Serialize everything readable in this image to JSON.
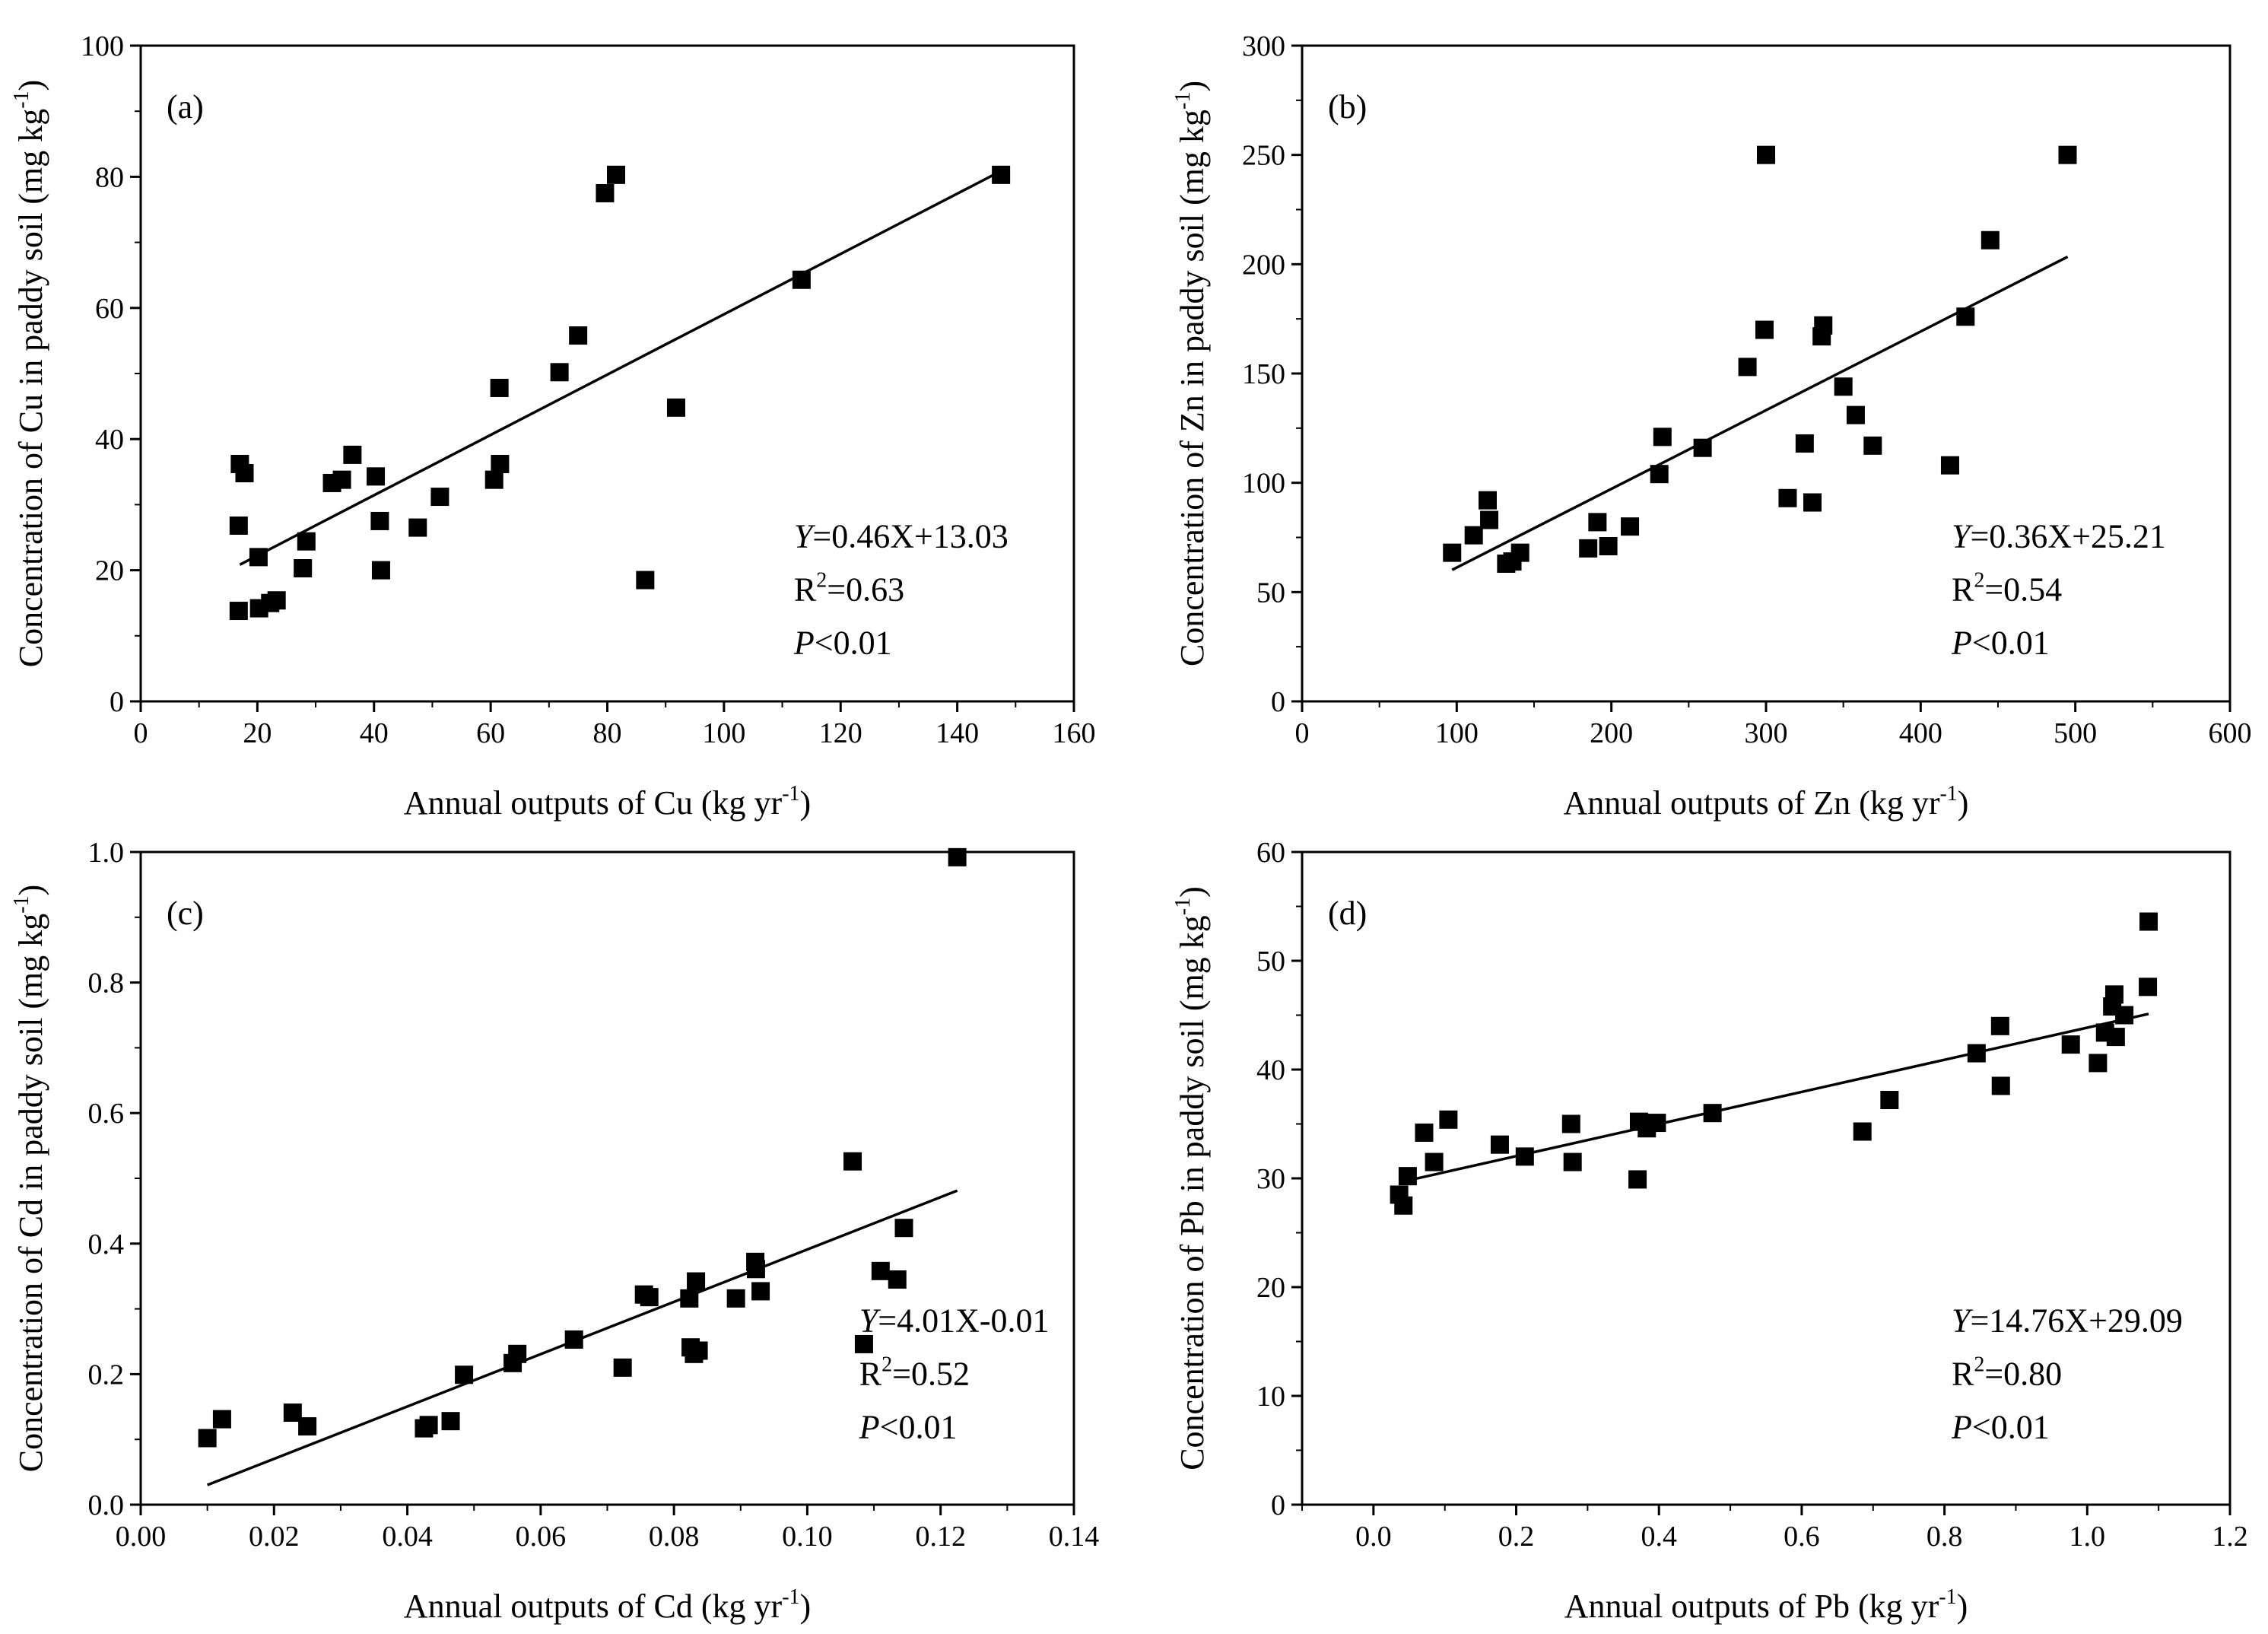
{
  "chart_data": [
    {
      "type": "scatter",
      "panel_label": "(a)",
      "element": "Cu",
      "xlabel": {
        "main": "Annual outputs of Cu (kg yr",
        "sup": "-1",
        "close": ")"
      },
      "ylabel": {
        "main": "Concentration of Cu in paddy soil (mg kg",
        "sup": "-1",
        "close": ")"
      },
      "xlim": [
        0,
        160
      ],
      "ylim": [
        0,
        100
      ],
      "xticks": [
        0,
        20,
        40,
        60,
        80,
        100,
        120,
        140,
        160
      ],
      "xtick_labels": [
        "0",
        "20",
        "40",
        "60",
        "80",
        "100",
        "120",
        "140",
        "160"
      ],
      "yticks": [
        0,
        20,
        40,
        60,
        80,
        100
      ],
      "ytick_labels": [
        "0",
        "20",
        "40",
        "60",
        "80",
        "100"
      ],
      "points": [
        [
          17,
          36.2
        ],
        [
          17.8,
          34.8
        ],
        [
          16.8,
          26.8
        ],
        [
          16.8,
          13.8
        ],
        [
          20.2,
          22
        ],
        [
          20.3,
          14.2
        ],
        [
          22.2,
          15
        ],
        [
          23.3,
          15.4
        ],
        [
          27.8,
          20.3
        ],
        [
          28.4,
          24.4
        ],
        [
          32.8,
          33.3
        ],
        [
          34.5,
          33.8
        ],
        [
          36.3,
          37.6
        ],
        [
          40.3,
          34.3
        ],
        [
          41,
          27.5
        ],
        [
          41.2,
          20
        ],
        [
          47.5,
          26.5
        ],
        [
          51.3,
          31.2
        ],
        [
          60.6,
          33.8
        ],
        [
          61.5,
          47.8
        ],
        [
          61.6,
          36.2
        ],
        [
          71.8,
          50.2
        ],
        [
          75,
          55.8
        ],
        [
          79.6,
          77.5
        ],
        [
          81.5,
          80.3
        ],
        [
          86.5,
          18.5
        ],
        [
          91.8,
          44.8
        ],
        [
          113.3,
          64.3
        ],
        [
          147.5,
          80.3
        ]
      ],
      "fit": {
        "slope": 0.46,
        "intercept": 13.03,
        "x_range": [
          17,
          147.5
        ]
      },
      "equation": {
        "y": "Y",
        "rhs": "=0.46X+13.03"
      },
      "r2": {
        "r": "R",
        "sup": "2",
        "rhs": "=0.63"
      },
      "p": {
        "p": "P",
        "rhs": "<0.01"
      }
    },
    {
      "type": "scatter",
      "panel_label": "(b)",
      "element": "Zn",
      "xlabel": {
        "main": "Annual outputs of Zn (kg yr",
        "sup": "-1",
        "close": ")"
      },
      "ylabel": {
        "main": "Concentration of Zn in paddy soil (mg kg",
        "sup": "-1",
        "close": ")"
      },
      "xlim": [
        0,
        600
      ],
      "ylim": [
        0,
        300
      ],
      "xticks": [
        0,
        100,
        200,
        300,
        400,
        500,
        600
      ],
      "xtick_labels": [
        "0",
        "100",
        "200",
        "300",
        "400",
        "500",
        "600"
      ],
      "yticks": [
        0,
        50,
        100,
        150,
        200,
        250,
        300
      ],
      "ytick_labels": [
        "0",
        "50",
        "100",
        "150",
        "200",
        "250",
        "300"
      ],
      "points": [
        [
          97,
          68
        ],
        [
          111,
          76
        ],
        [
          120,
          92
        ],
        [
          121,
          83
        ],
        [
          132,
          63
        ],
        [
          136,
          64
        ],
        [
          141,
          68
        ],
        [
          185,
          70
        ],
        [
          191,
          82
        ],
        [
          198,
          71
        ],
        [
          212,
          80
        ],
        [
          231,
          104
        ],
        [
          233,
          121
        ],
        [
          259,
          116
        ],
        [
          288,
          153
        ],
        [
          299,
          170
        ],
        [
          300,
          250
        ],
        [
          314,
          93
        ],
        [
          325,
          118
        ],
        [
          330,
          91
        ],
        [
          336,
          167
        ],
        [
          337,
          172
        ],
        [
          350,
          144
        ],
        [
          358,
          131
        ],
        [
          369,
          117
        ],
        [
          419,
          108
        ],
        [
          429,
          176
        ],
        [
          445,
          211
        ],
        [
          495,
          250
        ]
      ],
      "fit": {
        "slope": 0.36,
        "intercept": 25.21,
        "x_range": [
          97,
          495
        ]
      },
      "equation": {
        "y": "Y",
        "rhs": "=0.36X+25.21"
      },
      "r2": {
        "r": "R",
        "sup": "2",
        "rhs": "=0.54"
      },
      "p": {
        "p": "P",
        "rhs": "<0.01"
      }
    },
    {
      "type": "scatter",
      "panel_label": "(c)",
      "element": "Cd",
      "xlabel": {
        "main": "Annual outputs of Cd (kg yr",
        "sup": "-1",
        "close": ")"
      },
      "ylabel": {
        "main": "Concentration of Cd in paddy soil (mg kg",
        "sup": "-1",
        "close": ")"
      },
      "xlim": [
        0,
        0.14
      ],
      "ylim": [
        0,
        1.0
      ],
      "xticks": [
        0,
        0.02,
        0.04,
        0.06,
        0.08,
        0.1,
        0.12,
        0.14
      ],
      "xtick_labels": [
        "0.00",
        "0.02",
        "0.04",
        "0.06",
        "0.08",
        "0.10",
        "0.12",
        "0.14"
      ],
      "yticks": [
        0,
        0.2,
        0.4,
        0.6,
        0.8,
        1.0
      ],
      "ytick_labels": [
        "0.0",
        "0.2",
        "0.4",
        "0.6",
        "0.8",
        "1.0"
      ],
      "points": [
        [
          0.01,
          0.102
        ],
        [
          0.0122,
          0.131
        ],
        [
          0.0228,
          0.141
        ],
        [
          0.025,
          0.12
        ],
        [
          0.0425,
          0.117
        ],
        [
          0.0432,
          0.122
        ],
        [
          0.0465,
          0.128
        ],
        [
          0.0485,
          0.199
        ],
        [
          0.0558,
          0.217
        ],
        [
          0.0565,
          0.231
        ],
        [
          0.065,
          0.253
        ],
        [
          0.0723,
          0.21
        ],
        [
          0.0755,
          0.322
        ],
        [
          0.0763,
          0.318
        ],
        [
          0.0823,
          0.316
        ],
        [
          0.0825,
          0.241
        ],
        [
          0.083,
          0.231
        ],
        [
          0.0833,
          0.342
        ],
        [
          0.0837,
          0.236
        ],
        [
          0.0893,
          0.316
        ],
        [
          0.0922,
          0.372
        ],
        [
          0.0923,
          0.361
        ],
        [
          0.093,
          0.327
        ],
        [
          0.1068,
          0.526
        ],
        [
          0.1085,
          0.246
        ],
        [
          0.111,
          0.358
        ],
        [
          0.1135,
          0.345
        ],
        [
          0.1145,
          0.424
        ],
        [
          0.1225,
          0.992
        ]
      ],
      "fit": {
        "slope": 4.01,
        "intercept": -0.01,
        "x_range": [
          0.01,
          0.1225
        ]
      },
      "equation": {
        "y": "Y",
        "rhs": "=4.01X-0.01"
      },
      "r2": {
        "r": "R",
        "sup": "2",
        "rhs": "=0.52"
      },
      "p": {
        "p": "P",
        "rhs": "<0.01"
      }
    },
    {
      "type": "scatter",
      "panel_label": "(d)",
      "element": "Pb",
      "xlabel": {
        "main": "Annual outputs of Pb (kg yr",
        "sup": "-1",
        "close": ")"
      },
      "ylabel": {
        "main": "Concentration of Pb in paddy soil (mg kg",
        "sup": "-1",
        "close": ")"
      },
      "xlim": [
        -0.1,
        1.2
      ],
      "ylim": [
        0,
        60
      ],
      "xticks": [
        0,
        0.2,
        0.4,
        0.6,
        0.8,
        1.0,
        1.2
      ],
      "xtick_labels": [
        "0.0",
        "0.2",
        "0.4",
        "0.6",
        "0.8",
        "1.0",
        "1.2"
      ],
      "yticks": [
        0,
        10,
        20,
        30,
        40,
        50,
        60
      ],
      "ytick_labels": [
        "0",
        "10",
        "20",
        "30",
        "40",
        "50",
        "60"
      ],
      "points": [
        [
          0.036,
          28.5
        ],
        [
          0.042,
          27.5
        ],
        [
          0.048,
          30.2
        ],
        [
          0.071,
          34.2
        ],
        [
          0.085,
          31.5
        ],
        [
          0.105,
          35.4
        ],
        [
          0.177,
          33.1
        ],
        [
          0.212,
          32.0
        ],
        [
          0.277,
          35.0
        ],
        [
          0.279,
          31.5
        ],
        [
          0.37,
          29.9
        ],
        [
          0.372,
          35.2
        ],
        [
          0.383,
          34.6
        ],
        [
          0.397,
          35.1
        ],
        [
          0.475,
          36.0
        ],
        [
          0.685,
          34.3
        ],
        [
          0.723,
          37.2
        ],
        [
          0.845,
          41.5
        ],
        [
          0.878,
          44.0
        ],
        [
          0.879,
          38.5
        ],
        [
          0.977,
          42.3
        ],
        [
          1.015,
          40.6
        ],
        [
          1.025,
          43.4
        ],
        [
          1.035,
          45.8
        ],
        [
          1.038,
          46.9
        ],
        [
          1.04,
          43.0
        ],
        [
          1.052,
          45.0
        ],
        [
          1.085,
          47.6
        ],
        [
          1.086,
          53.6
        ]
      ],
      "fit": {
        "slope": 14.76,
        "intercept": 29.09,
        "x_range": [
          0.036,
          1.086
        ]
      },
      "equation": {
        "y": "Y",
        "rhs": "=14.76X+29.09"
      },
      "r2": {
        "r": "R",
        "sup": "2",
        "rhs": "=0.80"
      },
      "p": {
        "p": "P",
        "rhs": "<0.01"
      }
    }
  ]
}
